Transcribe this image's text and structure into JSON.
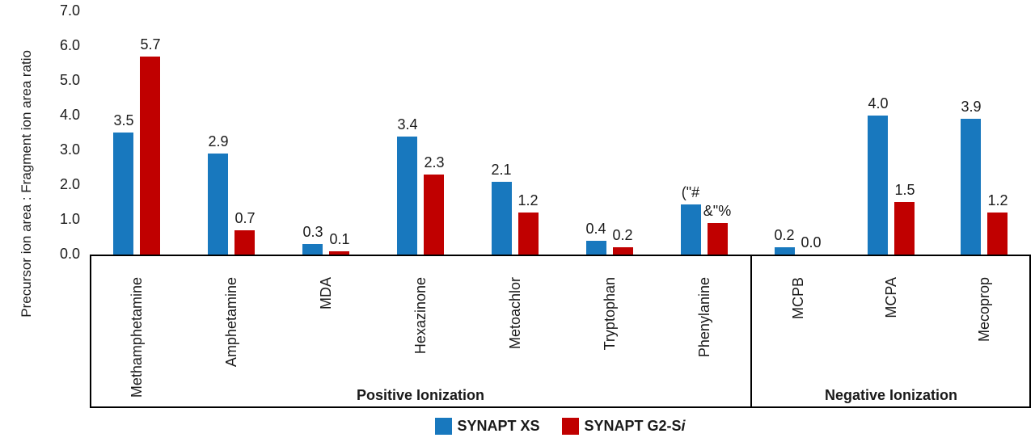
{
  "chart_data": {
    "type": "bar",
    "title": "",
    "ylabel": "Precursor ion area : Fragment ion area ratio",
    "xlabel": "",
    "ylim": [
      0,
      7
    ],
    "ytick_labels": [
      "0.0",
      "1.0",
      "2.0",
      "3.0",
      "4.0",
      "5.0",
      "6.0",
      "7.0"
    ],
    "grid": "off",
    "legend_position": "bottom-center",
    "categories": [
      "Methamphetamine",
      "Amphetamine",
      "MDA",
      "Hexazinone",
      "Metoachlor",
      "Tryptophan",
      "Phenylanine",
      "MCPB",
      "MCPA",
      "Mecoprop"
    ],
    "groups": [
      {
        "label": "Positive Ionization",
        "start_index": 0,
        "end_index": 6
      },
      {
        "label": "Negative Ionization",
        "start_index": 7,
        "end_index": 9
      }
    ],
    "series": [
      {
        "name": "SYNAPT XS",
        "color": "#1878BE",
        "values": [
          3.5,
          2.9,
          0.3,
          3.4,
          2.1,
          0.4,
          1.45,
          0.2,
          4.0,
          3.9
        ],
        "labels": [
          "3.5",
          "2.9",
          "0.3",
          "3.4",
          "2.1",
          "0.4",
          "(\"#",
          "0.2",
          "4.0",
          "3.9"
        ]
      },
      {
        "name": "SYNAPT G2-Si",
        "color": "#C00000",
        "values": [
          5.7,
          0.7,
          0.1,
          2.3,
          1.2,
          0.2,
          0.9,
          0.0,
          1.5,
          1.2
        ],
        "labels": [
          "5.7",
          "0.7",
          "0.1",
          "2.3",
          "1.2",
          "0.2",
          "&\"%",
          "0.0",
          "1.5",
          "1.2"
        ]
      }
    ],
    "legend": [
      {
        "label": "SYNAPT XS",
        "italic_suffix": "",
        "swatch_color": "#1878BE"
      },
      {
        "label": "SYNAPT G2-S",
        "italic_suffix": "i",
        "swatch_color": "#C00000"
      }
    ]
  }
}
